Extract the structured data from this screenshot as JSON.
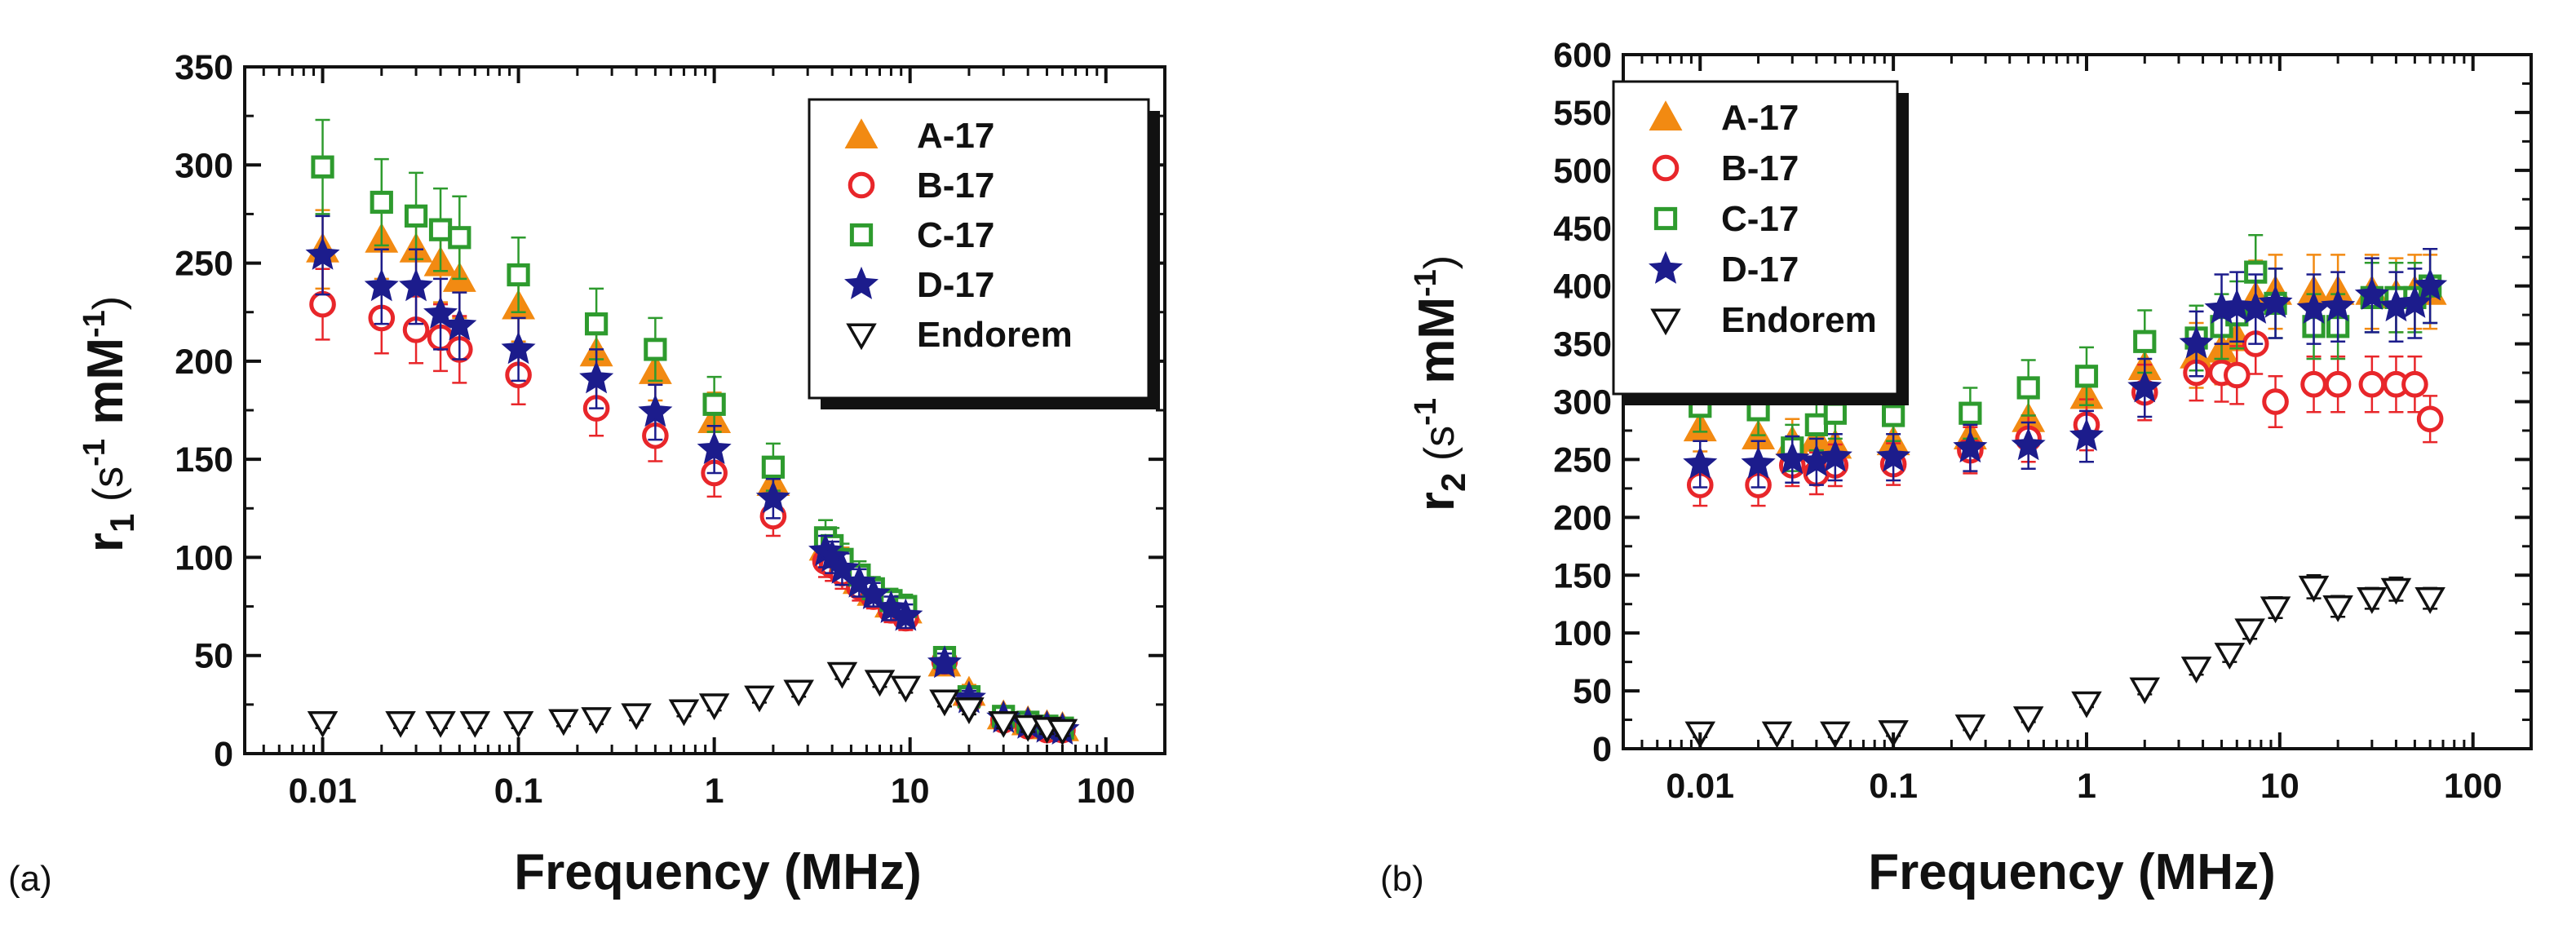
{
  "chart_data": [
    {
      "type": "scatter",
      "panel_label": "(a)",
      "xlabel": "Frequency (MHz)",
      "ylabel": {
        "base": "r",
        "sub": "1",
        "paren_open": " (s",
        "sup1": "-1",
        "mid": " mM",
        "sup2": "-1",
        "paren_close": ")"
      },
      "x_scale": "log",
      "xlim": [
        0.004,
        200
      ],
      "ylim": [
        0,
        350
      ],
      "x_ticks": [
        0.01,
        0.1,
        1,
        10,
        100
      ],
      "x_tick_labels": [
        "0.01",
        "0.1",
        "1",
        "10",
        "100"
      ],
      "y_ticks": [
        0,
        50,
        100,
        150,
        200,
        250,
        300,
        350
      ],
      "y_tick_labels": [
        "0",
        "50",
        "100",
        "150",
        "200",
        "250",
        "300",
        "350"
      ],
      "legend_position": "top-right",
      "series": [
        {
          "name": "A-17",
          "marker": "triangle-up",
          "color": "#F28A12",
          "filled": true,
          "x": [
            0.01,
            0.02,
            0.03,
            0.04,
            0.05,
            0.1,
            0.25,
            0.5,
            1,
            2,
            3.7,
            4,
            4.5,
            5.5,
            6.5,
            8,
            9.5,
            15,
            20,
            30,
            40,
            50,
            60
          ],
          "y": [
            257,
            262,
            257,
            250,
            242,
            228,
            204,
            195,
            170,
            138,
            105,
            102,
            97,
            88,
            82,
            76,
            73,
            46,
            31,
            19,
            16,
            14,
            13
          ],
          "err": [
            20,
            20,
            20,
            20,
            20,
            18,
            17,
            15,
            14,
            12,
            8,
            8,
            8,
            7,
            6,
            6,
            6,
            5,
            4,
            3,
            3,
            3,
            3
          ]
        },
        {
          "name": "B-17",
          "marker": "circle",
          "color": "#E8262A",
          "filled": false,
          "x": [
            0.01,
            0.02,
            0.03,
            0.04,
            0.05,
            0.1,
            0.25,
            0.5,
            1,
            2,
            3.7,
            4,
            4.5,
            5.5,
            6.5,
            8,
            9.5,
            15,
            20,
            30,
            40,
            50,
            60
          ],
          "y": [
            229,
            222,
            216,
            212,
            206,
            193,
            176,
            162,
            143,
            121,
            98,
            96,
            92,
            85,
            80,
            73,
            69,
            47,
            27,
            17,
            14,
            12,
            12
          ],
          "err": [
            18,
            18,
            17,
            17,
            17,
            15,
            14,
            13,
            12,
            10,
            8,
            8,
            8,
            7,
            6,
            6,
            6,
            5,
            4,
            3,
            3,
            3,
            3
          ]
        },
        {
          "name": "C-17",
          "marker": "square",
          "color": "#2E9B2E",
          "filled": false,
          "x": [
            0.01,
            0.02,
            0.03,
            0.04,
            0.05,
            0.1,
            0.25,
            0.5,
            1,
            2,
            3.7,
            4,
            4.5,
            5.5,
            6.5,
            8,
            9.5,
            15,
            20,
            30,
            40,
            50,
            60
          ],
          "y": [
            299,
            281,
            274,
            267,
            263,
            244,
            219,
            206,
            178,
            146,
            110,
            106,
            99,
            91,
            84,
            78,
            75,
            49,
            29,
            19,
            16,
            14,
            13
          ],
          "err": [
            24,
            22,
            22,
            21,
            21,
            19,
            18,
            16,
            14,
            12,
            9,
            9,
            8,
            7,
            6,
            6,
            6,
            5,
            4,
            3,
            3,
            3,
            3
          ]
        },
        {
          "name": "D-17",
          "marker": "star",
          "color": "#1C1C8C",
          "filled": true,
          "x": [
            0.01,
            0.02,
            0.03,
            0.04,
            0.05,
            0.1,
            0.25,
            0.5,
            1,
            2,
            3.7,
            4,
            4.5,
            5.5,
            6.5,
            8,
            9.5,
            15,
            20,
            30,
            40,
            50,
            60
          ],
          "y": [
            254,
            238,
            238,
            224,
            218,
            206,
            191,
            174,
            155,
            130,
            103,
            100,
            94,
            87,
            81,
            74,
            70,
            46,
            28,
            18,
            15,
            13,
            12
          ],
          "err": [
            20,
            19,
            19,
            18,
            17,
            16,
            15,
            14,
            12,
            10,
            8,
            8,
            8,
            7,
            6,
            6,
            6,
            5,
            4,
            3,
            3,
            3,
            3
          ]
        },
        {
          "name": "Endorem",
          "marker": "triangle-down",
          "color": "#111111",
          "filled": false,
          "x": [
            0.01,
            0.025,
            0.04,
            0.06,
            0.1,
            0.17,
            0.25,
            0.4,
            0.7,
            1,
            1.7,
            2.7,
            4.5,
            7,
            9.5,
            15,
            20,
            30,
            40,
            50,
            60
          ],
          "y": [
            16,
            16,
            16,
            16,
            16,
            17,
            18,
            20,
            22,
            25,
            29,
            32,
            41,
            37,
            34,
            27,
            23,
            16,
            14,
            13,
            12
          ],
          "err": [
            3,
            3,
            3,
            3,
            3,
            3,
            3,
            3,
            3,
            3,
            3,
            3,
            3,
            3,
            3,
            3,
            3,
            3,
            3,
            3,
            3
          ]
        }
      ]
    },
    {
      "type": "scatter",
      "panel_label": "(b)",
      "xlabel": "Frequency (MHz)",
      "ylabel": {
        "base": "r",
        "sub": "2",
        "paren_open": " (s",
        "sup1": "-1",
        "mid": " mM",
        "sup2": "-1",
        "paren_close": ")"
      },
      "x_scale": "log",
      "xlim": [
        0.004,
        200
      ],
      "ylim": [
        0,
        600
      ],
      "x_ticks": [
        0.01,
        0.1,
        1,
        10,
        100
      ],
      "x_tick_labels": [
        "0.01",
        "0.1",
        "1",
        "10",
        "100"
      ],
      "y_ticks": [
        0,
        50,
        100,
        150,
        200,
        250,
        300,
        350,
        400,
        450,
        500,
        550,
        600
      ],
      "y_tick_labels": [
        "0",
        "50",
        "100",
        "150",
        "200",
        "250",
        "300",
        "350",
        "400",
        "450",
        "500",
        "550",
        "600"
      ],
      "legend_position": "top-left",
      "series": [
        {
          "name": "A-17",
          "marker": "triangle-up",
          "color": "#F28A12",
          "filled": true,
          "x": [
            0.01,
            0.02,
            0.03,
            0.04,
            0.05,
            0.1,
            0.25,
            0.5,
            1,
            2,
            3.7,
            5,
            6,
            7.5,
            9.5,
            15,
            20,
            30,
            40,
            50,
            60
          ],
          "y": [
            277,
            270,
            265,
            268,
            262,
            265,
            270,
            285,
            305,
            330,
            340,
            345,
            355,
            390,
            395,
            395,
            395,
            395,
            392,
            395,
            395
          ],
          "err": [
            20,
            20,
            20,
            20,
            20,
            20,
            20,
            22,
            24,
            26,
            28,
            30,
            30,
            32,
            32,
            32,
            32,
            32,
            32,
            32,
            32
          ]
        },
        {
          "name": "B-17",
          "marker": "circle",
          "color": "#E8262A",
          "filled": false,
          "x": [
            0.01,
            0.02,
            0.03,
            0.04,
            0.05,
            0.1,
            0.25,
            0.5,
            1,
            2,
            3.7,
            5,
            6,
            7.5,
            9.5,
            15,
            20,
            30,
            40,
            50,
            60
          ],
          "y": [
            228,
            228,
            245,
            238,
            245,
            246,
            258,
            268,
            280,
            308,
            325,
            325,
            323,
            350,
            300,
            315,
            315,
            315,
            315,
            315,
            285
          ],
          "err": [
            18,
            18,
            18,
            18,
            18,
            18,
            20,
            20,
            22,
            24,
            24,
            25,
            25,
            26,
            22,
            24,
            24,
            24,
            24,
            24,
            20
          ]
        },
        {
          "name": "C-17",
          "marker": "square",
          "color": "#2E9B2E",
          "filled": false,
          "x": [
            0.01,
            0.02,
            0.03,
            0.04,
            0.05,
            0.1,
            0.25,
            0.5,
            1,
            2,
            3.7,
            5,
            6,
            7.5,
            9.5,
            15,
            20,
            30,
            40,
            50,
            60
          ],
          "y": [
            296,
            293,
            260,
            280,
            290,
            288,
            290,
            312,
            322,
            352,
            355,
            365,
            375,
            412,
            385,
            365,
            365,
            390,
            390,
            390,
            400
          ],
          "err": [
            22,
            22,
            20,
            22,
            22,
            22,
            22,
            24,
            25,
            27,
            28,
            28,
            29,
            32,
            30,
            28,
            28,
            30,
            30,
            30,
            32
          ]
        },
        {
          "name": "D-17",
          "marker": "star",
          "color": "#1C1C8C",
          "filled": true,
          "x": [
            0.01,
            0.02,
            0.03,
            0.04,
            0.05,
            0.1,
            0.25,
            0.5,
            1,
            2,
            3.7,
            5,
            6,
            7.5,
            9.5,
            15,
            20,
            30,
            40,
            50,
            60
          ],
          "y": [
            246,
            246,
            250,
            248,
            252,
            252,
            260,
            262,
            270,
            312,
            350,
            380,
            382,
            380,
            385,
            380,
            382,
            392,
            382,
            385,
            400
          ],
          "err": [
            20,
            20,
            20,
            20,
            20,
            20,
            20,
            20,
            22,
            25,
            28,
            30,
            30,
            30,
            30,
            30,
            30,
            32,
            30,
            30,
            32
          ]
        },
        {
          "name": "Endorem",
          "marker": "triangle-down",
          "color": "#111111",
          "filled": false,
          "x": [
            0.01,
            0.025,
            0.05,
            0.1,
            0.25,
            0.5,
            1,
            2,
            3.7,
            5.5,
            7,
            9.5,
            15,
            20,
            30,
            40,
            60
          ],
          "y": [
            14,
            14,
            14,
            15,
            20,
            27,
            40,
            52,
            70,
            82,
            103,
            122,
            140,
            123,
            130,
            138,
            130
          ],
          "err": [
            4,
            4,
            4,
            4,
            4,
            4,
            4,
            5,
            6,
            7,
            8,
            9,
            10,
            9,
            9,
            10,
            9
          ]
        }
      ]
    }
  ]
}
